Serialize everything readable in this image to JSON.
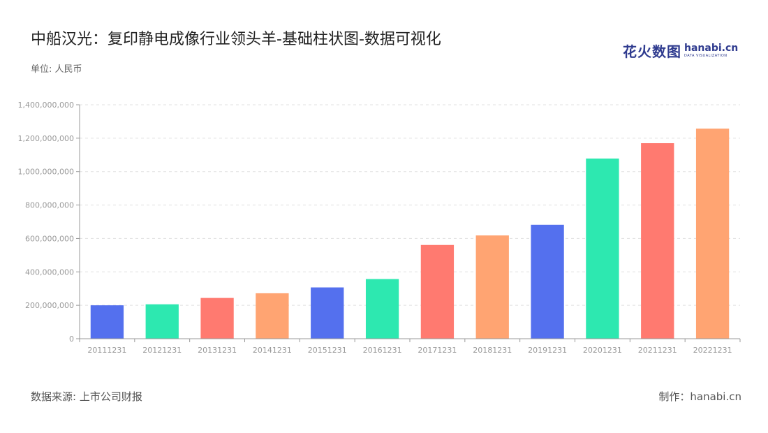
{
  "header": {
    "title": "中船汉光：复印静电成像行业领头羊-基础柱状图-数据可视化",
    "unit": "单位: 人民币"
  },
  "logo": {
    "mark": "花火数图",
    "name": "hanabi.cn",
    "sub": "DATA VISUALIZATION"
  },
  "footer": {
    "source": "数据来源: 上市公司财报",
    "credit": "制作：hanabi.cn"
  },
  "colors": [
    "#5470ee",
    "#2de8b0",
    "#ff7a70",
    "#ffa472"
  ],
  "chart_data": {
    "type": "bar",
    "categories": [
      "20111231",
      "20121231",
      "20131231",
      "20141231",
      "20151231",
      "20161231",
      "20171231",
      "20181231",
      "20191231",
      "20201231",
      "20211231",
      "20221231"
    ],
    "values": [
      200000000,
      206000000,
      244000000,
      272000000,
      307000000,
      357000000,
      561000000,
      618000000,
      682000000,
      1078000000,
      1170000000,
      1257000000
    ],
    "ylim": [
      0,
      1400000000
    ],
    "yticks": [
      0,
      200000000,
      400000000,
      600000000,
      800000000,
      1000000000,
      1200000000,
      1400000000
    ],
    "ytick_labels": [
      "0",
      "200,000,000",
      "400,000,000",
      "600,000,000",
      "800,000,000",
      "1,000,000,000",
      "1,200,000,000",
      "1,400,000,000"
    ],
    "grid": true
  }
}
